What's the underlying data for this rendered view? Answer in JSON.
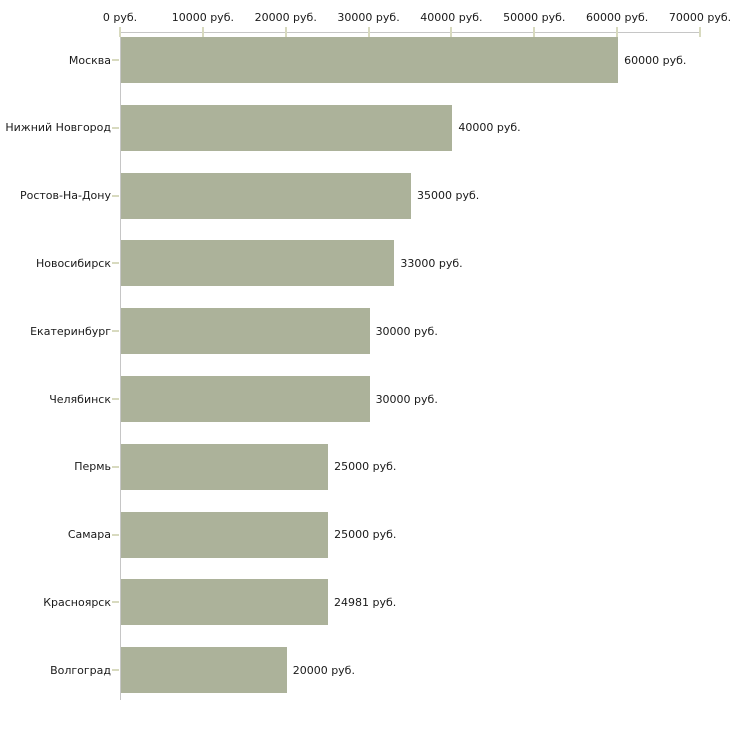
{
  "chart_data": {
    "type": "bar",
    "orientation": "horizontal",
    "title": "",
    "categories": [
      "Москва",
      "Нижний Новгород",
      "Ростов-На-Дону",
      "Новосибирск",
      "Екатеринбург",
      "Челябинск",
      "Пермь",
      "Самара",
      "Красноярск",
      "Волгоград"
    ],
    "values": [
      60000,
      40000,
      35000,
      33000,
      30000,
      30000,
      25000,
      25000,
      24981,
      20000
    ],
    "value_labels": [
      "60000 руб.",
      "40000 руб.",
      "35000 руб.",
      "33000 руб.",
      "30000 руб.",
      "30000 руб.",
      "25000 руб.",
      "25000 руб.",
      "24981 руб.",
      "20000 руб."
    ],
    "x_tick_values": [
      0,
      10000,
      20000,
      30000,
      40000,
      50000,
      60000,
      70000
    ],
    "x_tick_labels": [
      "0 руб.",
      "10000 руб.",
      "20000 руб.",
      "30000 руб.",
      "40000 руб.",
      "50000 руб.",
      "60000 руб.",
      "70000 руб."
    ],
    "xlim": [
      0,
      70000
    ],
    "unit": "руб.",
    "xlabel": "",
    "ylabel": "",
    "grid": false,
    "legend_position": "none",
    "colors": {
      "bar": "#acb29a",
      "axis_line": "#c6c6c6",
      "tick_mark": "#d8dabf",
      "text": "#1a1a1a",
      "background": "#ffffff"
    }
  }
}
